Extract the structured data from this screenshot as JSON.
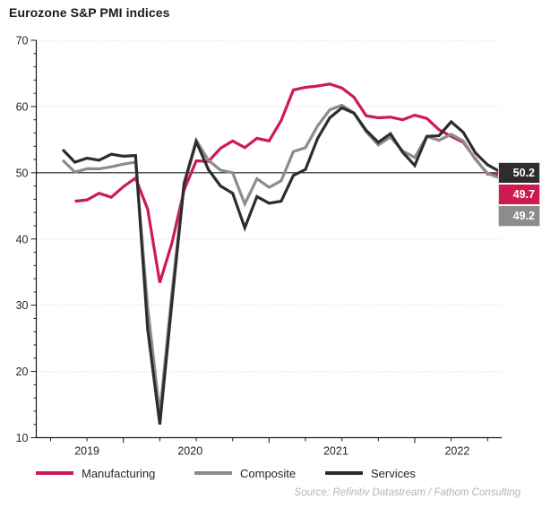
{
  "title": "Eurozone S&P PMI indices",
  "source": "Source: Refinitiv Datastream / Fathom Consulting",
  "colors": {
    "manufacturing": "#cf1a50",
    "composite": "#8c8c8c",
    "services": "#2d2d2d",
    "reference_line": "#1a1a1a",
    "gridline": "#d9d9d9",
    "axis": "#1a1a1a",
    "tick_text": "#262626",
    "source_text": "#b5b5b5"
  },
  "end_labels": [
    {
      "label": "50.2",
      "series_index": 2
    },
    {
      "label": "49.7",
      "series_index": 0
    },
    {
      "label": "49.2",
      "series_index": 1
    }
  ],
  "chart_data": {
    "type": "line",
    "frequency": "monthly",
    "months": [
      "2019-08",
      "2019-09",
      "2019-10",
      "2019-11",
      "2019-12",
      "2020-01",
      "2020-02",
      "2020-03",
      "2020-04",
      "2020-05",
      "2020-06",
      "2020-07",
      "2020-08",
      "2020-09",
      "2020-10",
      "2020-11",
      "2020-12",
      "2021-01",
      "2021-02",
      "2021-03",
      "2021-04",
      "2021-05",
      "2021-06",
      "2021-07",
      "2021-08",
      "2021-09",
      "2021-10",
      "2021-11",
      "2021-12",
      "2022-01",
      "2022-02",
      "2022-03",
      "2022-04",
      "2022-05",
      "2022-06",
      "2022-07",
      "2022-08"
    ],
    "series": [
      {
        "name": "Manufacturing",
        "color": "#cf1a50",
        "values": [
          null,
          45.7,
          45.9,
          46.9,
          46.3,
          47.9,
          49.2,
          44.5,
          33.4,
          39.4,
          47.4,
          51.8,
          51.7,
          53.7,
          54.8,
          53.8,
          55.2,
          54.8,
          57.9,
          62.5,
          62.9,
          63.1,
          63.4,
          62.8,
          61.4,
          58.6,
          58.3,
          58.4,
          58.0,
          58.7,
          58.2,
          56.5,
          55.5,
          54.6,
          52.1,
          49.8,
          49.7
        ]
      },
      {
        "name": "Composite",
        "color": "#8c8c8c",
        "values": [
          51.9,
          50.1,
          50.6,
          50.6,
          50.9,
          51.3,
          51.6,
          29.7,
          13.6,
          31.9,
          48.5,
          54.9,
          51.9,
          50.4,
          50.0,
          45.3,
          49.1,
          47.8,
          48.8,
          53.2,
          53.8,
          57.1,
          59.5,
          60.2,
          59.0,
          56.2,
          54.2,
          55.4,
          53.3,
          52.3,
          55.5,
          54.9,
          55.8,
          54.8,
          52.0,
          49.9,
          49.2
        ]
      },
      {
        "name": "Services",
        "color": "#2d2d2d",
        "values": [
          53.5,
          51.6,
          52.2,
          51.9,
          52.8,
          52.5,
          52.6,
          26.4,
          12.0,
          30.5,
          48.3,
          54.7,
          50.5,
          48.0,
          46.9,
          41.7,
          46.4,
          45.4,
          45.7,
          49.6,
          50.5,
          55.2,
          58.3,
          59.8,
          59.0,
          56.4,
          54.6,
          55.9,
          53.1,
          51.1,
          55.5,
          55.6,
          57.7,
          56.1,
          53.0,
          51.2,
          50.2
        ]
      }
    ],
    "end_values": {
      "services": 50.2,
      "manufacturing": 49.7,
      "composite": 49.2
    },
    "ylim": [
      10,
      70
    ],
    "y_ticks": [
      10,
      20,
      30,
      40,
      50,
      60,
      70
    ],
    "reference_line": 50,
    "x_tick_labels": [
      "2019",
      "2020",
      "2021",
      "2022"
    ],
    "grid": "dotted-horizontal",
    "legend_position": "bottom"
  }
}
